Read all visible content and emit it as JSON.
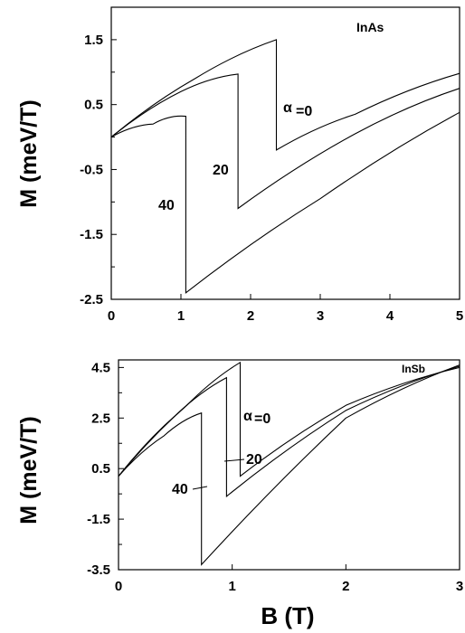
{
  "chart_data": [
    {
      "type": "line",
      "xlim": [
        0,
        5
      ],
      "ylim": [
        -2.5,
        2.0
      ],
      "xticks": [
        "0",
        "1",
        "2",
        "3",
        "4",
        "5"
      ],
      "yticks": [
        "1.5",
        "0.5",
        "-0.5",
        "-1.5",
        "-2.5"
      ],
      "ylabel": "M (meV/T)",
      "xlabel": "",
      "material_label": "InAs",
      "alpha_symbol": "α",
      "curve_labels": [
        "=0",
        "20",
        "40"
      ],
      "series": [
        {
          "points": [
            [
              0,
              0.0
            ],
            [
              1.2,
              0.9
            ],
            [
              2.37,
              1.5
            ],
            [
              2.37,
              -0.2
            ],
            [
              3.5,
              0.35
            ],
            [
              5,
              0.98
            ]
          ]
        },
        {
          "points": [
            [
              0,
              0.0
            ],
            [
              1.0,
              0.7
            ],
            [
              1.82,
              0.97
            ],
            [
              1.82,
              -1.1
            ],
            [
              3.5,
              0.05
            ],
            [
              5,
              0.75
            ]
          ]
        },
        {
          "points": [
            [
              0,
              0.0
            ],
            [
              0.6,
              0.2
            ],
            [
              1.07,
              0.32
            ],
            [
              1.07,
              -2.4
            ],
            [
              3.0,
              -0.95
            ],
            [
              5,
              0.38
            ]
          ]
        }
      ],
      "grid": false
    },
    {
      "type": "line",
      "xlim": [
        0,
        3
      ],
      "ylim": [
        -3.5,
        4.8
      ],
      "xticks": [
        "0",
        "1",
        "2",
        "3"
      ],
      "yticks": [
        "4.5",
        "2.5",
        "0.5",
        "-1.5",
        "-3.5"
      ],
      "ylabel": "M (meV/T)",
      "xlabel": "B (T)",
      "material_label": "InSb",
      "alpha_symbol": "α",
      "curve_labels": [
        "=0",
        "20",
        "40"
      ],
      "series": [
        {
          "points": [
            [
              0,
              0.2
            ],
            [
              0.6,
              3.0
            ],
            [
              1.07,
              4.7
            ],
            [
              1.07,
              0.2
            ],
            [
              2.0,
              3.0
            ],
            [
              3,
              4.5
            ]
          ]
        },
        {
          "points": [
            [
              0,
              0.2
            ],
            [
              0.5,
              2.6
            ],
            [
              0.95,
              4.1
            ],
            [
              0.95,
              -0.6
            ],
            [
              2.0,
              2.8
            ],
            [
              3,
              4.55
            ]
          ]
        },
        {
          "points": [
            [
              0,
              0.2
            ],
            [
              0.4,
              1.8
            ],
            [
              0.73,
              2.7
            ],
            [
              0.73,
              -3.3
            ],
            [
              2.0,
              2.5
            ],
            [
              3,
              4.6
            ]
          ]
        }
      ],
      "grid": false
    }
  ]
}
